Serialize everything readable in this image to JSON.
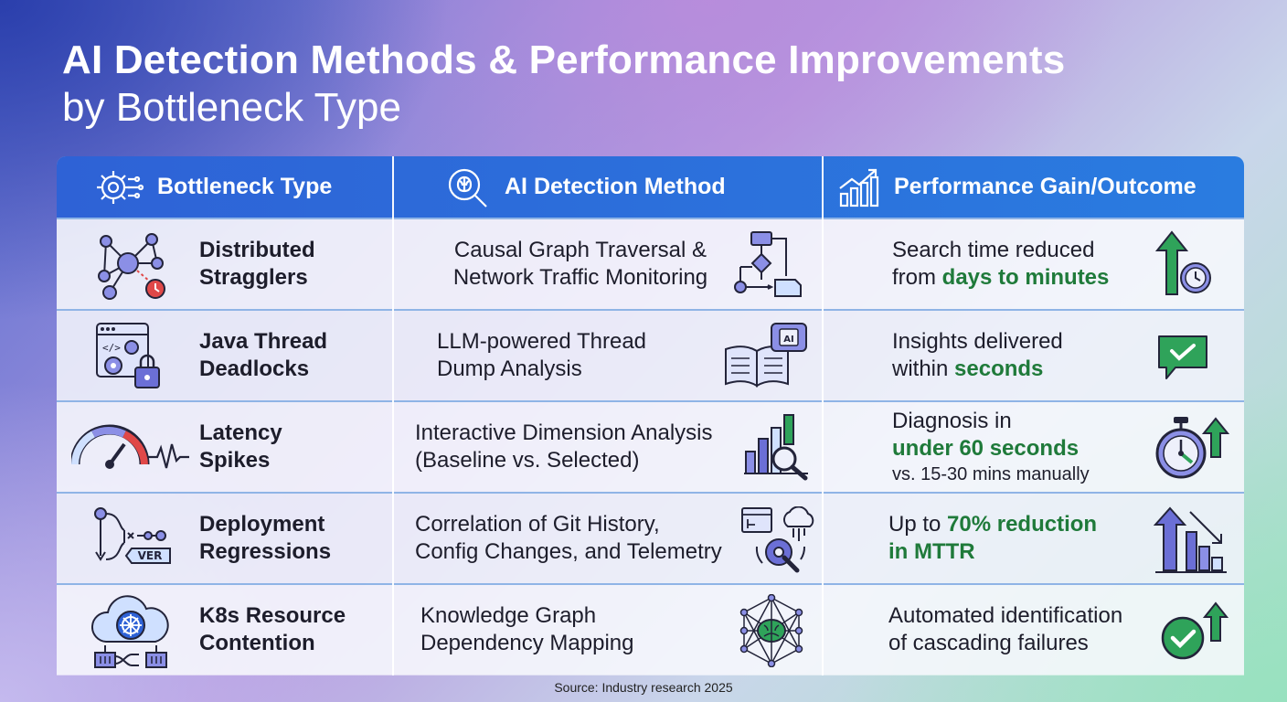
{
  "title": "AI Detection Methods & Performance Improvements",
  "subtitle": "by Bottleneck Type",
  "headers": {
    "bottleneck": "Bottleneck Type",
    "method": "AI Detection Method",
    "gain": "Performance Gain/Outcome"
  },
  "header_icons": [
    "gear-circuit-icon",
    "brain-magnifier-icon",
    "bar-chart-arrow-icon"
  ],
  "rows": [
    {
      "type_line1": "Distributed",
      "type_line2": "Stragglers",
      "method_line1": "Causal Graph Traversal &",
      "method_line2": "Network Traffic Monitoring",
      "gain_line1": "Search time reduced",
      "gain_pre2": "from ",
      "gain_hl2": "days to minutes",
      "icons": [
        "network-nodes-clock-icon",
        "flowchart-icon",
        "arrow-up-clock-icon"
      ]
    },
    {
      "type_line1": "Java Thread",
      "type_line2": "Deadlocks",
      "method_line1": "LLM-powered Thread",
      "method_line2": "Dump Analysis",
      "gain_line1": "Insights delivered",
      "gain_pre2": "within ",
      "gain_hl2": "seconds",
      "icons": [
        "code-window-lock-icon",
        "book-ai-chip-icon",
        "chat-check-icon"
      ]
    },
    {
      "type_line1": "Latency",
      "type_line2": "Spikes",
      "method_line1": "Interactive Dimension Analysis",
      "method_line2": "(Baseline vs. Selected)",
      "gain_line1": "Diagnosis in",
      "gain_hl2": "under 60 seconds",
      "gain_line3": "vs. 15-30 mins manually",
      "icons": [
        "gauge-pulse-icon",
        "bars-magnifier-icon",
        "stopwatch-arrow-icon"
      ]
    },
    {
      "type_line1": "Deployment",
      "type_line2": "Regressions",
      "method_line1": "Correlation of Git History,",
      "method_line2": "Config Changes, and Telemetry",
      "gain_pre1": "Up to ",
      "gain_hl1": "70% reduction",
      "gain_hl2": "in MTTR",
      "version_tag": "VER",
      "icons": [
        "git-branch-version-icon",
        "window-cloud-gear-icon",
        "bars-down-arrow-icon"
      ]
    },
    {
      "type_line1": "K8s Resource",
      "type_line2": "Contention",
      "method_line1": "Knowledge Graph",
      "method_line2": "Dependency Mapping",
      "gain_line1": "Automated identification",
      "gain_line2": "of cascading failures",
      "icons": [
        "kubernetes-cloud-icon",
        "brain-network-icon",
        "check-circle-arrow-icon"
      ]
    }
  ],
  "ai_chip_label": "AI",
  "source": "Source: Industry research 2025",
  "colors": {
    "header_blue": "#2e62d6",
    "highlight_green": "#1f7a3a",
    "icon_purple": "#6b6fd6",
    "icon_red": "#e04848",
    "icon_green": "#2fa35a"
  }
}
